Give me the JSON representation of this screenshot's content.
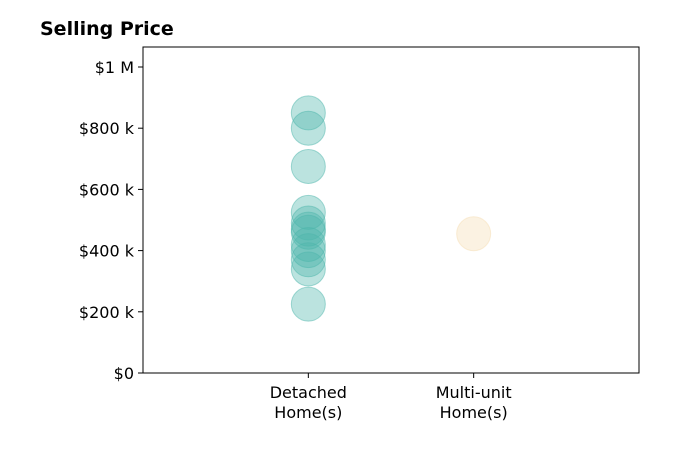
{
  "chart_data": {
    "type": "scatter",
    "title": "Selling Price",
    "xlabel": "",
    "ylabel": "",
    "categories": [
      "Detached\nHome(s)",
      "Multi-unit\nHome(s)"
    ],
    "y_ticks": [
      0,
      200000,
      400000,
      600000,
      800000,
      1000000
    ],
    "y_tick_labels": [
      "$0",
      "$200 k",
      "$400 k",
      "$600 k",
      "$800 k",
      "$1 M"
    ],
    "ylim": [
      0,
      1000000
    ],
    "xlim": [
      -1,
      2
    ],
    "grid": false,
    "series": [
      {
        "category_index": 0,
        "color": "#4db6ac",
        "values": [
          850000,
          800000,
          675000,
          525000,
          490000,
          470000,
          460000,
          420000,
          400000,
          370000,
          340000,
          225000
        ]
      },
      {
        "category_index": 1,
        "color": "#f5deb3",
        "values": [
          455000
        ]
      }
    ]
  }
}
